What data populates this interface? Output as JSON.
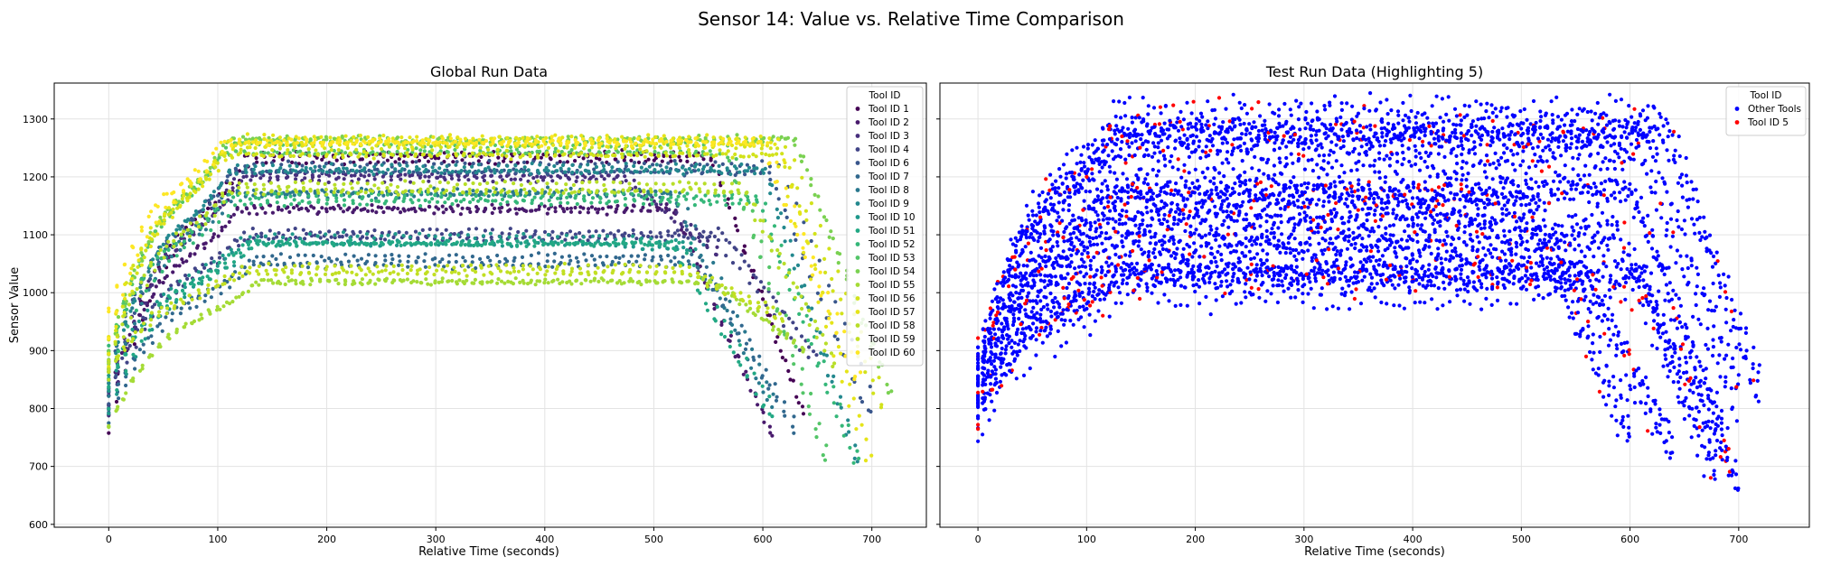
{
  "figure": {
    "suptitle": "Sensor 14: Value vs. Relative Time Comparison"
  },
  "chart_data": [
    {
      "type": "scatter",
      "title": "Global Run Data",
      "xlabel": "Relative Time (seconds)",
      "ylabel": "Sensor Value",
      "xlim": [
        -50,
        750
      ],
      "ylim": [
        595,
        1362
      ],
      "xticks": [
        "0",
        "100",
        "200",
        "300",
        "400",
        "500",
        "600",
        "700"
      ],
      "yticks": [
        "600",
        "700",
        "800",
        "900",
        "1000",
        "1100",
        "1200",
        "1300"
      ],
      "grid": true,
      "legend": {
        "title": "Tool ID",
        "placement": "top-right",
        "entries": [
          {
            "name": "Tool ID 1",
            "color": "#440154"
          },
          {
            "name": "Tool ID 2",
            "color": "#481a6c"
          },
          {
            "name": "Tool ID 3",
            "color": "#472f7d"
          },
          {
            "name": "Tool ID 4",
            "color": "#414487"
          },
          {
            "name": "Tool ID 6",
            "color": "#39568c"
          },
          {
            "name": "Tool ID 7",
            "color": "#31688e"
          },
          {
            "name": "Tool ID 8",
            "color": "#2a788e"
          },
          {
            "name": "Tool ID 9",
            "color": "#23888e"
          },
          {
            "name": "Tool ID 10",
            "color": "#1f988b"
          },
          {
            "name": "Tool ID 51",
            "color": "#22a884"
          },
          {
            "name": "Tool ID 52",
            "color": "#35b779"
          },
          {
            "name": "Tool ID 53",
            "color": "#54c568"
          },
          {
            "name": "Tool ID 54",
            "color": "#7ad151"
          },
          {
            "name": "Tool ID 55",
            "color": "#a5db36"
          },
          {
            "name": "Tool ID 56",
            "color": "#d2e21b"
          },
          {
            "name": "Tool ID 57",
            "color": "#e5e419"
          },
          {
            "name": "Tool ID 58",
            "color": "#b8de29"
          },
          {
            "name": "Tool ID 59",
            "color": "#c2df23"
          },
          {
            "name": "Tool ID 60",
            "color": "#fde725"
          }
        ]
      },
      "series_profiles": [
        {
          "plateau": 1232,
          "start": 800,
          "peak_t": 125,
          "end_t": 640,
          "end_v": 760
        },
        {
          "plateau": 1140,
          "start": 810,
          "peak_t": 120,
          "end_t": 610,
          "end_v": 750
        },
        {
          "plateau": 1195,
          "start": 820,
          "peak_t": 118,
          "end_t": 560,
          "end_v": 1060
        },
        {
          "plateau": 1100,
          "start": 830,
          "peak_t": 122,
          "end_t": 650,
          "end_v": 880
        },
        {
          "plateau": 1215,
          "start": 840,
          "peak_t": 115,
          "end_t": 700,
          "end_v": 800
        },
        {
          "plateau": 1055,
          "start": 800,
          "peak_t": 130,
          "end_t": 630,
          "end_v": 760
        },
        {
          "plateau": 1170,
          "start": 850,
          "peak_t": 112,
          "end_t": 610,
          "end_v": 800
        },
        {
          "plateau": 1210,
          "start": 860,
          "peak_t": 110,
          "end_t": 690,
          "end_v": 680
        },
        {
          "plateau": 1090,
          "start": 820,
          "peak_t": 128,
          "end_t": 540,
          "end_v": 1080
        },
        {
          "plateau": 1078,
          "start": 815,
          "peak_t": 130,
          "end_t": 610,
          "end_v": 780
        },
        {
          "plateau": 1160,
          "start": 870,
          "peak_t": 115,
          "end_t": 690,
          "end_v": 700
        },
        {
          "plateau": 1250,
          "start": 880,
          "peak_t": 108,
          "end_t": 660,
          "end_v": 720
        },
        {
          "plateau": 1270,
          "start": 890,
          "peak_t": 110,
          "end_t": 720,
          "end_v": 820
        },
        {
          "plateau": 1025,
          "start": 790,
          "peak_t": 132,
          "end_t": 640,
          "end_v": 900
        },
        {
          "plateau": 1245,
          "start": 900,
          "peak_t": 105,
          "end_t": 710,
          "end_v": 810
        },
        {
          "plateau": 1262,
          "start": 910,
          "peak_t": 112,
          "end_t": 700,
          "end_v": 690
        },
        {
          "plateau": 1183,
          "start": 880,
          "peak_t": 110,
          "end_t": 670,
          "end_v": 860
        },
        {
          "plateau": 1042,
          "start": 860,
          "peak_t": 125,
          "end_t": 620,
          "end_v": 960
        },
        {
          "plateau": 1255,
          "start": 950,
          "peak_t": 105,
          "end_t": 690,
          "end_v": 830
        }
      ]
    },
    {
      "type": "scatter",
      "title": "Test Run Data (Highlighting 5)",
      "xlabel": "Relative Time (seconds)",
      "ylabel": "",
      "xlim": [
        -35,
        765
      ],
      "ylim": [
        595,
        1362
      ],
      "xticks": [
        "0",
        "100",
        "200",
        "300",
        "400",
        "500",
        "600",
        "700"
      ],
      "yticks": [],
      "grid": true,
      "legend": {
        "title": "Tool ID",
        "placement": "top-right",
        "entries": [
          {
            "name": "Other Tools",
            "color": "#0000ff"
          },
          {
            "name": "Tool ID 5",
            "color": "#ff0000"
          }
        ]
      },
      "series_profiles": [
        {
          "plateau": 1290,
          "start": 900,
          "peak_t": 125,
          "end_t": 720,
          "end_v": 820
        },
        {
          "plateau": 1255,
          "start": 880,
          "peak_t": 120,
          "end_t": 700,
          "end_v": 800
        },
        {
          "plateau": 1200,
          "start": 860,
          "peak_t": 118,
          "end_t": 690,
          "end_v": 760
        },
        {
          "plateau": 1150,
          "start": 840,
          "peak_t": 120,
          "end_t": 600,
          "end_v": 760
        },
        {
          "plateau": 1100,
          "start": 830,
          "peak_t": 122,
          "end_t": 680,
          "end_v": 680
        },
        {
          "plateau": 1060,
          "start": 820,
          "peak_t": 128,
          "end_t": 640,
          "end_v": 740
        },
        {
          "plateau": 1020,
          "start": 800,
          "peak_t": 130,
          "end_t": 700,
          "end_v": 660
        }
      ]
    }
  ]
}
